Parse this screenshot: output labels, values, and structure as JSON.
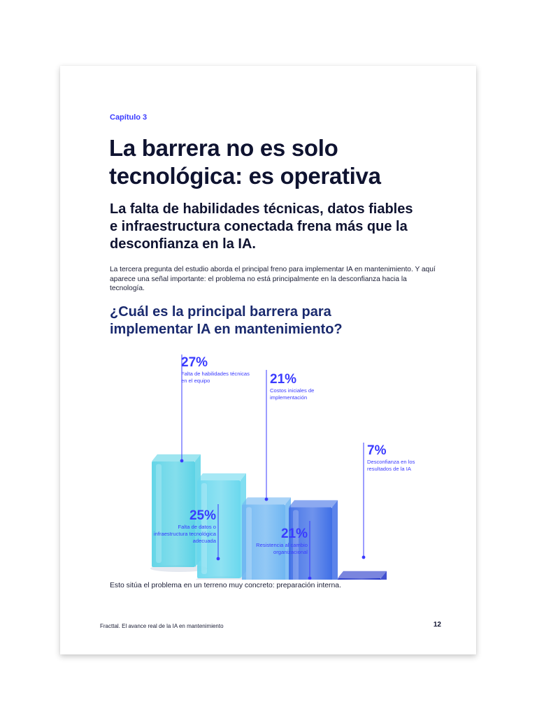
{
  "document": {
    "chapter": "Capítulo 3",
    "title": "La barrera no es solo tecnológica: es operativa",
    "subtitle": "La falta de habilidades técnicas, datos fiables e infraestructura conectada frena más que la desconfianza en la IA.",
    "intro": "La tercera pregunta del estudio aborda el principal freno para implementar IA en mantenimiento. Y aquí aparece una señal importante: el problema no está principalmente en la desconfianza hacia la tecnología.",
    "question": "¿Cuál es la principal barrera para implementar IA en mantenimiento?",
    "closing": "Esto sitúa el problema en un terreno muy concreto: preparación interna.",
    "footer": "Fracttal. El avance real de la IA en mantenimiento",
    "page_number": "12"
  },
  "chart_data": {
    "type": "bar",
    "categories": [
      "Falta de habilidades técnicas en el equipo",
      "Falta de datos o infraestructura tecnológica adecuada",
      "Costos iniciales de implementación",
      "Resistencia al cambio organizacional",
      "Desconfianza en los resultados de la IA"
    ],
    "values": [
      27,
      25,
      21,
      21,
      7
    ],
    "value_labels": [
      "27%",
      "25%",
      "21%",
      "21%",
      "7%"
    ],
    "title": "",
    "xlabel": "",
    "ylabel": "",
    "ylim": [
      0,
      30
    ],
    "grid": false,
    "legend": "none",
    "colors": [
      "#5cd3e6",
      "#6ad8ee",
      "#6fb6f2",
      "#3f6fe6",
      "#2133c8"
    ],
    "accent": "#3a3bff"
  }
}
